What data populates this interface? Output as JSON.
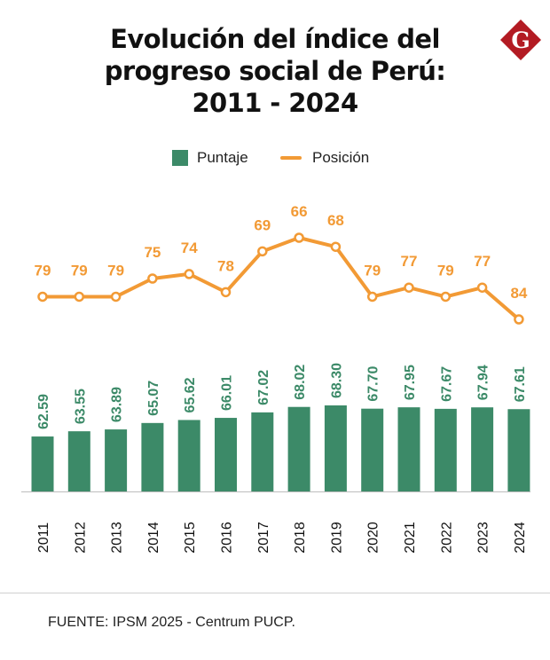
{
  "title_lines": [
    "Evolución del índice del",
    "progreso social de Perú:",
    "2011 - 2024"
  ],
  "logo": {
    "letter": "G",
    "color": "#b31b23"
  },
  "colors": {
    "bar": "#3c8a68",
    "line": "#f29a35",
    "bar_label": "#3c8a68",
    "line_label": "#f29a35"
  },
  "legend": {
    "bar_label": "Puntaje",
    "line_label": "Posición"
  },
  "source": "FUENTE: IPSM 2025 - Centrum PUCP.",
  "chart_data": {
    "type": "bar+line",
    "title": "Evolución del índice del progreso social de Perú: 2011 - 2024",
    "categories": [
      "2011",
      "2012",
      "2013",
      "2014",
      "2015",
      "2016",
      "2017",
      "2018",
      "2019",
      "2020",
      "2021",
      "2022",
      "2023",
      "2024"
    ],
    "series": [
      {
        "name": "Puntaje",
        "type": "bar",
        "values": [
          62.59,
          63.55,
          63.89,
          65.07,
          65.62,
          66.01,
          67.02,
          68.02,
          68.3,
          67.7,
          67.95,
          67.67,
          67.94,
          67.61
        ],
        "labels": [
          "62.59",
          "63.55",
          "63.89",
          "65.07",
          "65.62",
          "66.01",
          "67.02",
          "68.02",
          "68.30",
          "67.70",
          "67.95",
          "67.67",
          "67.94",
          "67.61"
        ]
      },
      {
        "name": "Posición",
        "type": "line",
        "values": [
          79,
          79,
          79,
          75,
          74,
          78,
          69,
          66,
          68,
          79,
          77,
          79,
          77,
          84
        ]
      }
    ],
    "bar_axis_range": [
      52.5,
      70
    ],
    "line_axis_range": [
      62,
      82
    ],
    "legend_position": "top-center",
    "grid": false
  }
}
